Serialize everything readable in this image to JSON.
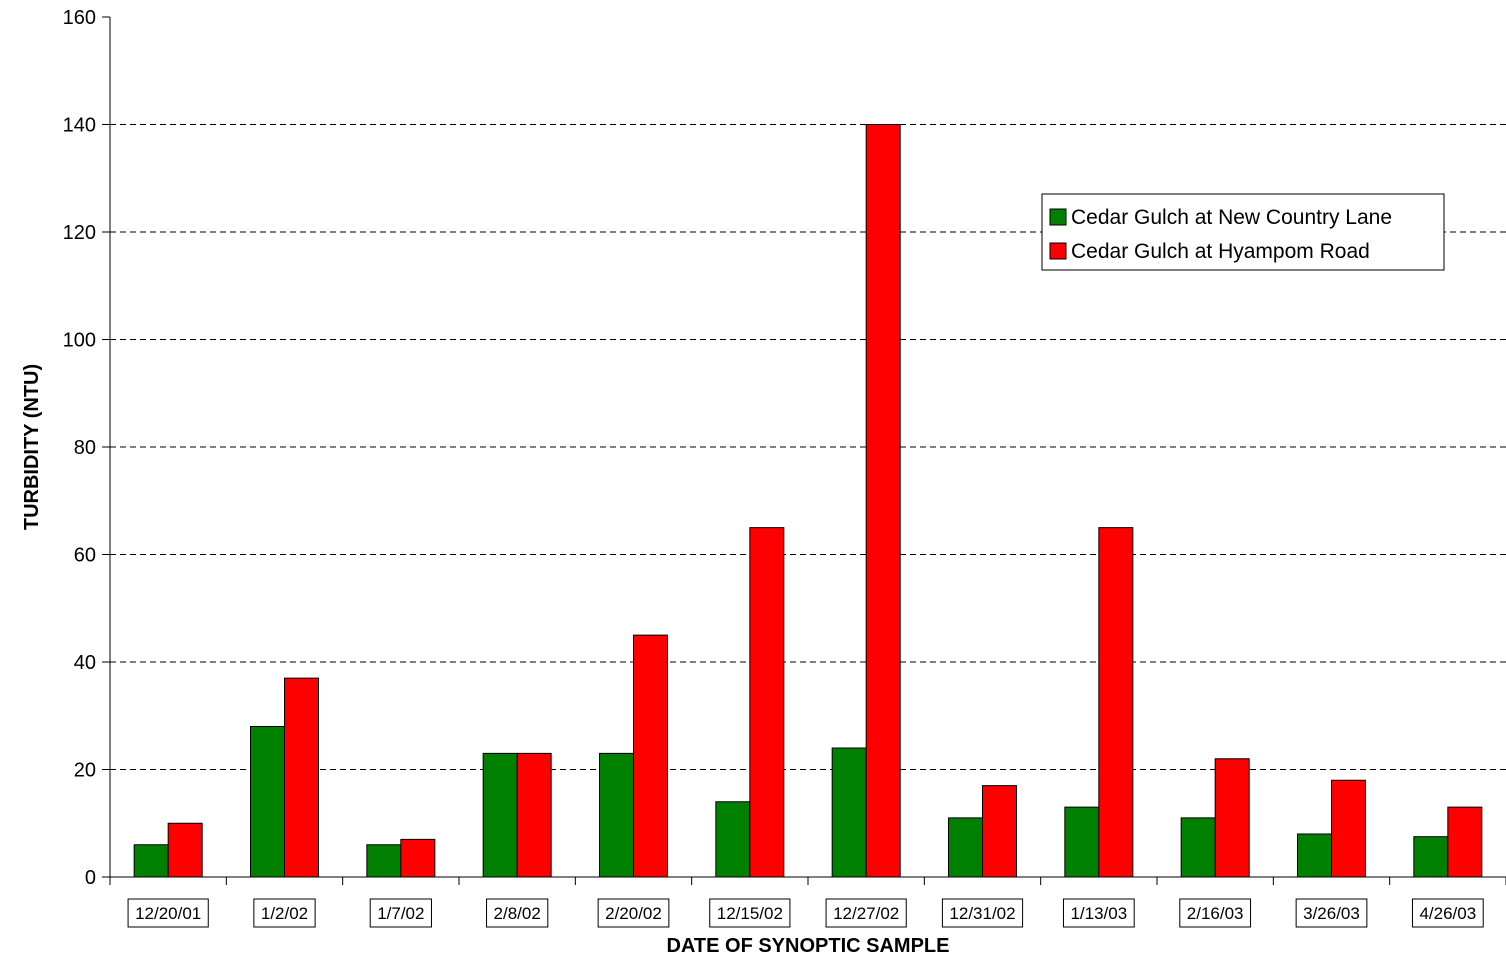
{
  "chart_data": {
    "type": "bar",
    "title": "",
    "xlabel": "DATE OF SYNOPTIC SAMPLE",
    "ylabel": "TURBIDITY  (NTU)",
    "ylim": [
      0,
      160
    ],
    "yticks": [
      0,
      20,
      40,
      60,
      80,
      100,
      120,
      140,
      160
    ],
    "grid": "horizontal dashed",
    "legend_position": "top-right",
    "categories": [
      "12/20/01",
      "1/2/02",
      "1/7/02",
      "2/8/02",
      "2/20/02",
      "12/15/02",
      "12/27/02",
      "12/31/02",
      "1/13/03",
      "2/16/03",
      "3/26/03",
      "4/26/03"
    ],
    "series": [
      {
        "name": "Cedar Gulch at New Country Lane",
        "color": "#008000",
        "values": [
          6,
          28,
          6,
          23,
          23,
          14,
          24,
          11,
          13,
          11,
          8,
          7.5
        ]
      },
      {
        "name": "Cedar Gulch at Hyampom Road",
        "color": "#ff0000",
        "values": [
          10,
          37,
          7,
          23,
          45,
          65,
          140,
          17,
          65,
          22,
          18,
          13
        ]
      }
    ]
  }
}
